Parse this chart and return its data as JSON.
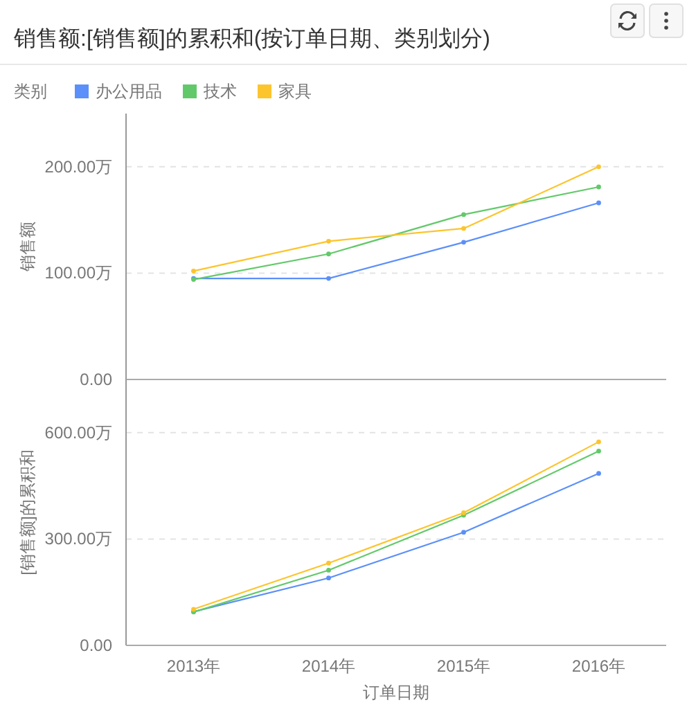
{
  "chart_data": [
    {
      "type": "line",
      "title": "销售额:[销售额]的累积和(按订单日期、类别划分)",
      "legend_title": "类别",
      "legend": "top left",
      "ylabel": "销售额",
      "categories": [
        null,
        null,
        null,
        null
      ],
      "series": [
        {
          "name": "办公用品",
          "color": "#5b8ff9",
          "values": [
            95,
            95,
            129,
            166
          ]
        },
        {
          "name": "技术",
          "color": "#62c96a",
          "values": [
            94,
            118,
            155,
            181
          ]
        },
        {
          "name": "家具",
          "color": "#fcc42d",
          "values": [
            102,
            130,
            142,
            200
          ]
        }
      ],
      "ylim": [
        0,
        250
      ],
      "yticks": [
        {
          "value": 0,
          "label": "0.00"
        },
        {
          "value": 100,
          "label": "100.00万"
        },
        {
          "value": 200,
          "label": "200.00万"
        }
      ],
      "grid": "y",
      "marker": "circle",
      "line_style": "solid",
      "tick_labels": "y"
    },
    {
      "type": "line",
      "xlabel": "订单日期",
      "ylabel": "[销售额]的累积和",
      "categories": [
        "2013年",
        "2014年",
        "2015年",
        "2016年"
      ],
      "series": [
        {
          "color": "#5b8ff9",
          "values": [
            95,
            190,
            319,
            485
          ]
        },
        {
          "color": "#62c96a",
          "values": [
            94,
            212,
            367,
            548
          ]
        },
        {
          "color": "#fcc42d",
          "values": [
            102,
            232,
            374,
            574
          ]
        }
      ],
      "ylim": [
        0,
        750
      ],
      "yticks": [
        {
          "value": 0,
          "label": "0.00"
        },
        {
          "value": 300,
          "label": "300.00万"
        },
        {
          "value": 600,
          "label": "600.00万"
        }
      ],
      "grid": "y",
      "marker": "circle",
      "line_style": "solid"
    }
  ]
}
